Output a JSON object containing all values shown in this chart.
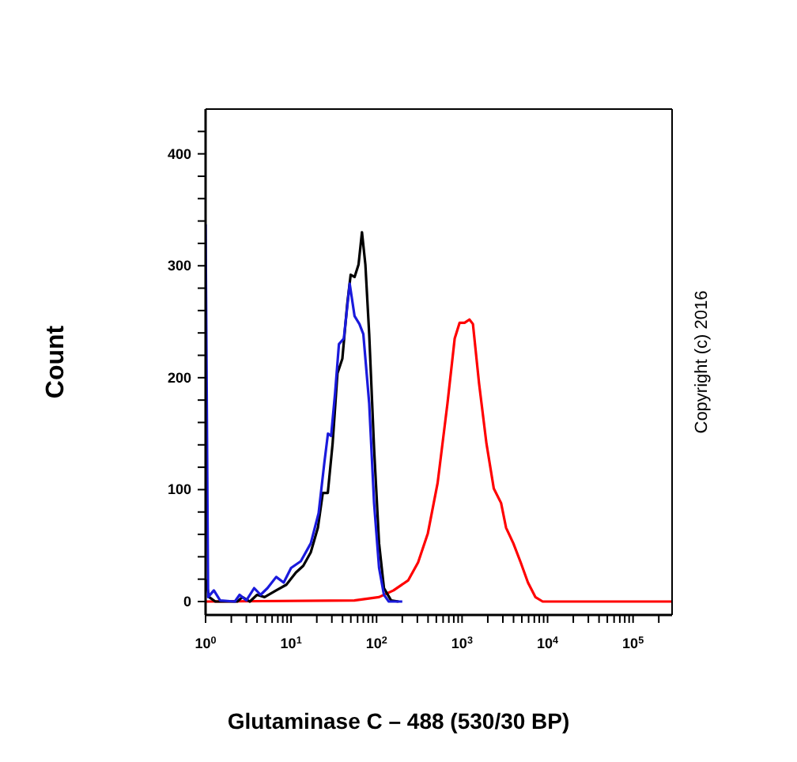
{
  "chart_data": {
    "type": "line",
    "xlabel": "Glutaminase C – 488 (530/30 BP)",
    "ylabel": "Count",
    "log": "x",
    "marker": "none",
    "line_style": "solid",
    "xlim": [
      1,
      286000
    ],
    "ylim": [
      -12,
      440
    ],
    "xticks": [
      {
        "value": 1,
        "label": "10$^{0}$"
      },
      {
        "value": 2,
        "label": null
      },
      {
        "value": 3,
        "label": null
      },
      {
        "value": 4,
        "label": null
      },
      {
        "value": 5,
        "label": null
      },
      {
        "value": 6,
        "label": null
      },
      {
        "value": 7,
        "label": null
      },
      {
        "value": 8,
        "label": null
      },
      {
        "value": 9,
        "label": null
      },
      {
        "value": 10,
        "label": "10$^{1}$"
      },
      {
        "value": 20,
        "label": null
      },
      {
        "value": 30,
        "label": null
      },
      {
        "value": 40,
        "label": null
      },
      {
        "value": 50,
        "label": null
      },
      {
        "value": 60,
        "label": null
      },
      {
        "value": 70,
        "label": null
      },
      {
        "value": 80,
        "label": null
      },
      {
        "value": 90,
        "label": null
      },
      {
        "value": 100,
        "label": "10$^{2}$"
      },
      {
        "value": 200,
        "label": null
      },
      {
        "value": 300,
        "label": null
      },
      {
        "value": 400,
        "label": null
      },
      {
        "value": 500,
        "label": null
      },
      {
        "value": 600,
        "label": null
      },
      {
        "value": 700,
        "label": null
      },
      {
        "value": 800,
        "label": null
      },
      {
        "value": 900,
        "label": null
      },
      {
        "value": 1000,
        "label": "10$^{3}$"
      },
      {
        "value": 2000,
        "label": null
      },
      {
        "value": 3000,
        "label": null
      },
      {
        "value": 4000,
        "label": null
      },
      {
        "value": 5000,
        "label": null
      },
      {
        "value": 6000,
        "label": null
      },
      {
        "value": 7000,
        "label": null
      },
      {
        "value": 8000,
        "label": null
      },
      {
        "value": 9000,
        "label": null
      },
      {
        "value": 10000,
        "label": "10$^{4}$"
      },
      {
        "value": 20000,
        "label": null
      },
      {
        "value": 30000,
        "label": null
      },
      {
        "value": 40000,
        "label": null
      },
      {
        "value": 50000,
        "label": null
      },
      {
        "value": 60000,
        "label": null
      },
      {
        "value": 70000,
        "label": null
      },
      {
        "value": 80000,
        "label": null
      },
      {
        "value": 90000,
        "label": null
      },
      {
        "value": 100000,
        "label": "10$^{5}$"
      },
      {
        "value": 200000,
        "label": null
      }
    ],
    "yticks": [
      0,
      {
        "value": 20,
        "label": null
      },
      {
        "value": 40,
        "label": null
      },
      {
        "value": 60,
        "label": null
      },
      {
        "value": 80,
        "label": null
      },
      100,
      {
        "value": 120,
        "label": null
      },
      {
        "value": 140,
        "label": null
      },
      {
        "value": 160,
        "label": null
      },
      {
        "value": 180,
        "label": null
      },
      200,
      {
        "value": 220,
        "label": null
      },
      {
        "value": 240,
        "label": null
      },
      {
        "value": 260,
        "label": null
      },
      {
        "value": 280,
        "label": null
      },
      300,
      {
        "value": 320,
        "label": null
      },
      {
        "value": 340,
        "label": null
      },
      {
        "value": 360,
        "label": null
      },
      {
        "value": 380,
        "label": null
      },
      400,
      {
        "value": 420,
        "label": null
      }
    ],
    "annotations": [
      "Copyright (c) 2016"
    ],
    "series": [
      {
        "color": "#ff0000",
        "x": [
          1,
          55,
          107,
          158,
          235,
          306,
          398,
          518,
          675,
          820,
          935,
          1070,
          1220,
          1340,
          1580,
          1930,
          2350,
          2860,
          3270,
          3980,
          4850,
          5900,
          7200,
          8770,
          286000
        ],
        "values": [
          0,
          1,
          4,
          10,
          19,
          35,
          61,
          106,
          177,
          235,
          249,
          249,
          252,
          248,
          195,
          141,
          101,
          88,
          66,
          52,
          35,
          17,
          4,
          0,
          0
        ]
      },
      {
        "color": "#000000",
        "x": [
          1,
          1.1,
          1.3,
          2.35,
          2.7,
          3.3,
          4.0,
          4.9,
          6.7,
          8.8,
          11.4,
          13.9,
          17,
          20.6,
          23.5,
          26.9,
          30.6,
          34.9,
          39.8,
          45.4,
          49.8,
          55.3,
          61.5,
          67.5,
          74,
          82,
          93.5,
          107,
          122,
          148,
          181
        ],
        "values": [
          20,
          4,
          0,
          0,
          4,
          0,
          6,
          4,
          10,
          15,
          26,
          32,
          44,
          66,
          97,
          97,
          141,
          204,
          217,
          266,
          292,
          290,
          301,
          330,
          301,
          239,
          137,
          52,
          12,
          1,
          0
        ]
      },
      {
        "color": "#1a1adc",
        "x": [
          1,
          1.07,
          1.25,
          1.48,
          2.2,
          2.5,
          3.0,
          3.7,
          4.4,
          5.3,
          6.7,
          8.2,
          10,
          13,
          17,
          21,
          24.5,
          27,
          29.4,
          32.7,
          36.3,
          41.4,
          48.5,
          55.3,
          63,
          70,
          82,
          93.5,
          107,
          122,
          139,
          200
        ],
        "values": [
          337,
          4,
          10,
          1,
          0,
          6,
          1,
          12,
          6,
          12,
          22,
          17,
          30,
          36,
          52,
          79,
          124,
          150,
          148,
          186,
          230,
          235,
          284,
          255,
          248,
          239,
          177,
          88,
          30,
          6,
          0,
          0
        ]
      }
    ]
  }
}
